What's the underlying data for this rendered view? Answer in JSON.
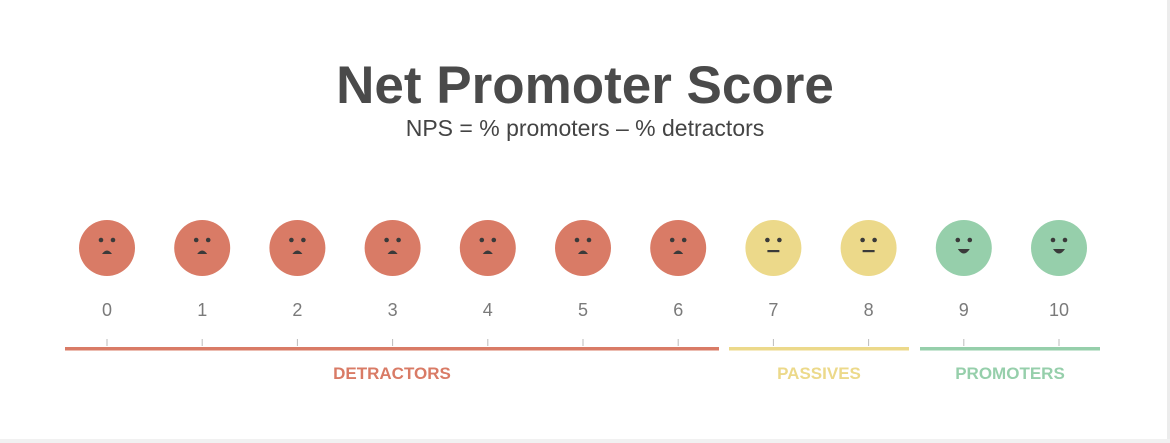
{
  "title": "Net Promoter Score",
  "subtitle": "NPS = % promoters – % detractors",
  "scale": [
    {
      "score": "0",
      "group": "detractors",
      "face": "sad-face-icon"
    },
    {
      "score": "1",
      "group": "detractors",
      "face": "sad-face-icon"
    },
    {
      "score": "2",
      "group": "detractors",
      "face": "sad-face-icon"
    },
    {
      "score": "3",
      "group": "detractors",
      "face": "sad-face-icon"
    },
    {
      "score": "4",
      "group": "detractors",
      "face": "sad-face-icon"
    },
    {
      "score": "5",
      "group": "detractors",
      "face": "sad-face-icon"
    },
    {
      "score": "6",
      "group": "detractors",
      "face": "sad-face-icon"
    },
    {
      "score": "7",
      "group": "passives",
      "face": "neutral-face-icon"
    },
    {
      "score": "8",
      "group": "passives",
      "face": "neutral-face-icon"
    },
    {
      "score": "9",
      "group": "promoters",
      "face": "happy-face-icon"
    },
    {
      "score": "10",
      "group": "promoters",
      "face": "happy-face-icon"
    }
  ],
  "groups": [
    {
      "key": "detractors",
      "label": "DETRACTORS",
      "color": "#d97b66",
      "from": 0,
      "to": 6
    },
    {
      "key": "passives",
      "label": "PASSIVES",
      "color": "#ecd98a",
      "from": 7,
      "to": 8
    },
    {
      "key": "promoters",
      "label": "PROMOTERS",
      "color": "#96cfab",
      "from": 9,
      "to": 10
    }
  ],
  "colors": {
    "title": "#4a4a4a",
    "subtitle": "#444444",
    "score_text": "#7a7a7a",
    "tick": "#bbbbbb",
    "face_features": "#3a3a3a"
  }
}
